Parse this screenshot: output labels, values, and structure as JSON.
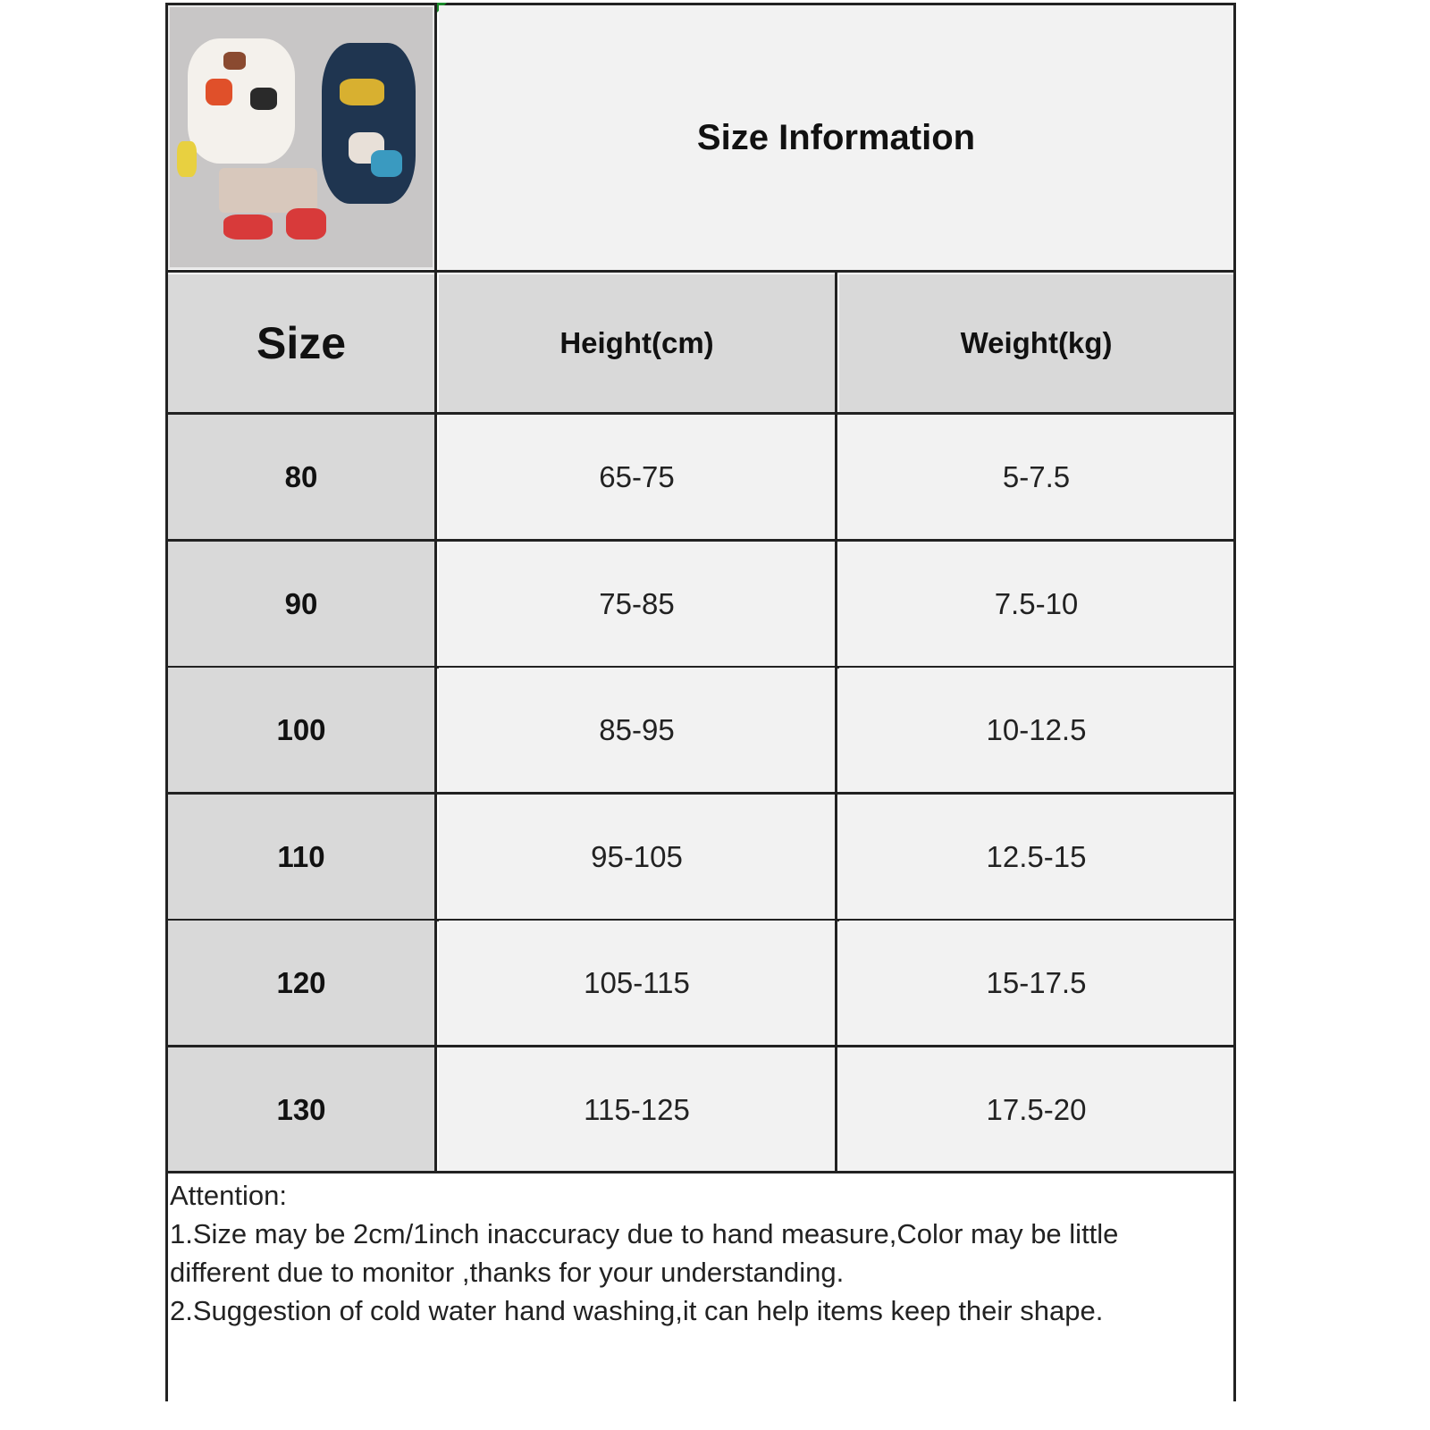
{
  "header": {
    "title": "Size Information",
    "product_image": "product-photo-floral-shirt-shorts-set"
  },
  "table": {
    "columns": [
      "Size",
      "Height(cm)",
      "Weight(kg)"
    ],
    "rows": [
      {
        "size": "80",
        "height": "65-75",
        "weight": "5-7.5"
      },
      {
        "size": "90",
        "height": "75-85",
        "weight": "7.5-10"
      },
      {
        "size": "100",
        "height": "85-95",
        "weight": "10-12.5"
      },
      {
        "size": "110",
        "height": "95-105",
        "weight": "12.5-15"
      },
      {
        "size": "120",
        "height": "105-115",
        "weight": "15-17.5"
      },
      {
        "size": "130",
        "height": "115-125",
        "weight": "17.5-20"
      }
    ]
  },
  "notes": {
    "heading": "Attention:",
    "items": [
      "1.Size may be 2cm/1inch inaccuracy due to hand measure,Color may be little different due to monitor ,thanks for your understanding.",
      "2.Suggestion of cold water hand washing,it can help items keep their shape."
    ]
  },
  "colors": {
    "header_bg": "#d9d9d9",
    "cell_bg": "#f2f2f2",
    "border": "#222222"
  }
}
